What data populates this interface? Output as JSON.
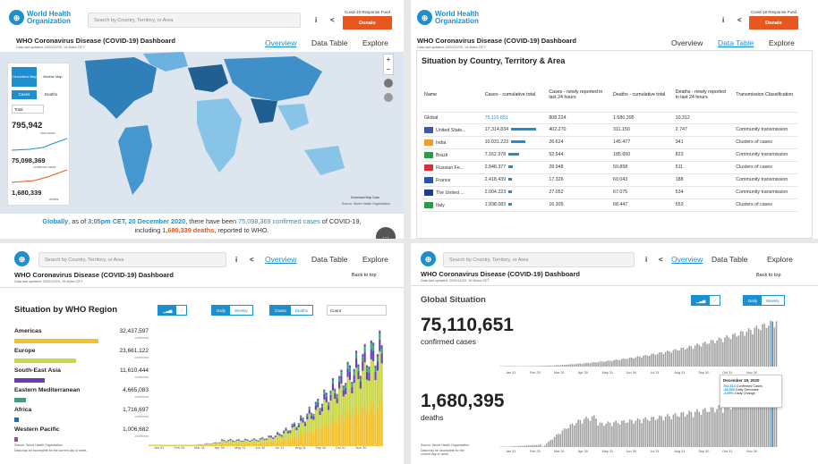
{
  "brand": {
    "line1": "World Health",
    "line2": "Organization"
  },
  "search": {
    "placeholder": "Search by Country, Territory, or Area"
  },
  "header": {
    "fund": "Covid-19 Response Fund",
    "donate": "Donate"
  },
  "dashboard": {
    "title": "WHO Coronavirus Disease (COVID-19) Dashboard",
    "updated": "Data last updated: 2020/12/20, 10:46am CET"
  },
  "nav": {
    "overview": "Overview",
    "data_table": "Data Table",
    "explore": "Explore"
  },
  "map_panel": {
    "map_type_btn": "Circulation Map",
    "bubble_btn": "Bubble Map",
    "cases_tab": "Cases",
    "deaths_tab": "Deaths",
    "select_value": "Total",
    "new_cases": "795,942",
    "new_cases_label": "new cases",
    "confirmed": "75,098,369",
    "confirmed_label": "confirmed cases",
    "deaths": "1,680,339",
    "deaths_label": "deaths",
    "download": "Download Map Data",
    "source": "Source: World Health Organization",
    "summary_prefix": "Globally",
    "summary_mid1": ", as of ",
    "summary_time": "3:05pm CET, 20 December 2020",
    "summary_mid2": ", there have been ",
    "summary_cases": "75,098,369 confirmed cases",
    "summary_mid3": " of COVID-19,",
    "summary_line2a": "including ",
    "summary_deaths": "1,680,339 deaths",
    "summary_line2b": ", reported to WHO."
  },
  "table_panel": {
    "title": "Situation by Country, Territory & Area",
    "headers": [
      "Name",
      "Cases - cumulative total",
      "Cases - newly reported in last 24 hours",
      "Deaths - cumulative total",
      "Deaths - newly reported in last 24 hours",
      "Transmission Classification"
    ],
    "global": {
      "name": "Global",
      "cases": "75.110.651",
      "new": "808.224",
      "deaths": "1.680.395",
      "newd": "10.312"
    },
    "rows": [
      {
        "name": "United State...",
        "cases": "17.314.834",
        "new": "402.270",
        "deaths": "311.150",
        "newd": "2.747",
        "tc": "Community transmission",
        "flag": "us"
      },
      {
        "name": "India",
        "cases": "10.031.223",
        "new": "26.624",
        "deaths": "145.477",
        "newd": "341",
        "tc": "Clusters of cases",
        "flag": "in"
      },
      {
        "name": "Brazil",
        "cases": "7.162.978",
        "new": "52.544",
        "deaths": "185.650",
        "newd": "823",
        "tc": "Community transmission",
        "flag": "br"
      },
      {
        "name": "Russian Fe...",
        "cases": "2.848.377",
        "new": "28.948",
        "deaths": "50.858",
        "newd": "511",
        "tc": "Clusters of cases",
        "flag": "ru"
      },
      {
        "name": "France",
        "cases": "2.418.439",
        "new": "17.326",
        "deaths": "60.043",
        "newd": "188",
        "tc": "Community transmission",
        "flag": "fr"
      },
      {
        "name": "The United ...",
        "cases": "2.004.223",
        "new": "27.052",
        "deaths": "67.075",
        "newd": "534",
        "tc": "Community transmission",
        "flag": "gb"
      },
      {
        "name": "Italy",
        "cases": "1.938.083",
        "new": "16.305",
        "deaths": "68.447",
        "newd": "553",
        "tc": "Clusters of cases",
        "flag": "it"
      }
    ]
  },
  "region_panel": {
    "back_to_top": "Back to top",
    "title": "Situation by WHO Region",
    "daily": "Daily",
    "weekly": "Weekly",
    "cases": "Cases",
    "deaths": "Deaths",
    "select": "Count",
    "confirmed": "confirmed",
    "regions": [
      {
        "name": "Americas",
        "value": "32,437,597",
        "color": "#f2c12e",
        "frac": 1.0
      },
      {
        "name": "Europe",
        "value": "23,661,122",
        "color": "#c8d84a",
        "frac": 0.73
      },
      {
        "name": "South-East Asia",
        "value": "11,610,444",
        "color": "#6a3fb5",
        "frac": 0.36
      },
      {
        "name": "Eastern Mediterranean",
        "value": "4,665,083",
        "color": "#3aa676",
        "frac": 0.14
      },
      {
        "name": "Africa",
        "value": "1,716,697",
        "color": "#1d6fb8",
        "frac": 0.05
      },
      {
        "name": "Western Pacific",
        "value": "1,006,682",
        "color": "#b042a6",
        "frac": 0.03
      }
    ],
    "source": "Source: World Health Organization",
    "note": "Data may be incomplete for the current day or week.",
    "months": [
      "Jan 31",
      "Feb 29",
      "Mar 31",
      "Apr 30",
      "May 31",
      "Jun 30",
      "Jul 31",
      "Aug 31",
      "Sep 30",
      "Oct 31",
      "Nov 30"
    ]
  },
  "global_panel": {
    "back_to_top": "Back to top",
    "title": "Global Situation",
    "daily": "Daily",
    "weekly": "Weekly",
    "cases": "75,110,651",
    "cases_label": "confirmed cases",
    "deaths": "1,680,395",
    "deaths_label": "deaths",
    "tooltip": {
      "date": "December 19, 2020",
      "v1": "702,314",
      "l1": "Confirmed Cases",
      "v2": "-28,950",
      "l2": "Daily Decrease",
      "v3": "-3.95%",
      "l3": "Daily Change"
    },
    "source": "Source: World Health Organization",
    "note": "Data may be incomplete for the current day or week.",
    "months": [
      "Jan 31",
      "Feb 29",
      "Mar 31",
      "Apr 30",
      "May 31",
      "Jun 30",
      "Jul 31",
      "Aug 31",
      "Sep 30",
      "Oct 31",
      "Nov 30"
    ]
  }
}
